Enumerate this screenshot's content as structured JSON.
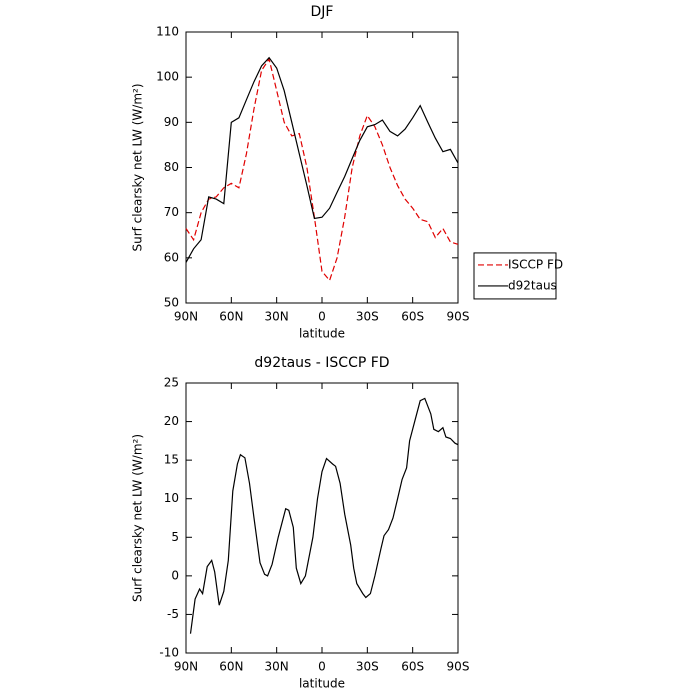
{
  "chart_data": [
    {
      "type": "line",
      "title": "DJF",
      "xlabel": "latitude",
      "ylabel": "Surf clearsky net LW (W/m²)",
      "x": [
        90,
        85,
        80,
        75,
        70,
        65,
        60,
        55,
        50,
        45,
        40,
        35,
        30,
        25,
        20,
        15,
        10,
        5,
        0,
        -5,
        -10,
        -15,
        -20,
        -25,
        -30,
        -35,
        -40,
        -45,
        -50,
        -55,
        -60,
        -65,
        -70,
        -75,
        -80,
        -85,
        -90
      ],
      "series": [
        {
          "name": "ISCCP FD",
          "color": "#e00000",
          "dash": "dashed",
          "values": [
            66.5,
            64,
            70,
            73,
            73.5,
            75.5,
            76.5,
            75.5,
            83,
            93,
            101.5,
            104,
            97,
            90,
            87,
            87.5,
            80,
            69,
            57,
            55,
            60,
            69,
            80,
            87,
            91.5,
            89,
            85,
            80,
            76,
            73,
            71,
            68.5,
            68,
            64.5,
            66.5,
            63.5,
            63
          ]
        },
        {
          "name": "d92taus",
          "color": "#000000",
          "dash": "solid",
          "values": [
            59,
            62,
            64,
            73.5,
            73,
            72,
            90,
            91,
            95,
            99,
            102.5,
            104.3,
            102,
            97,
            90,
            83,
            76,
            68.7,
            69,
            71,
            74.5,
            78,
            82,
            86,
            89,
            89.5,
            90.5,
            88,
            87,
            88.5,
            91,
            93.7,
            90,
            86.5,
            83.5,
            84,
            81
          ]
        }
      ],
      "xlim": [
        90,
        -90
      ],
      "xticks": [
        {
          "value": 90,
          "label": "90N"
        },
        {
          "value": 60,
          "label": "60N"
        },
        {
          "value": 30,
          "label": "30N"
        },
        0,
        {
          "value": -30,
          "label": "30S"
        },
        {
          "value": -60,
          "label": "60S"
        },
        {
          "value": -90,
          "label": "90S"
        }
      ],
      "ylim": [
        50,
        110
      ],
      "yticks": [
        50,
        60,
        70,
        80,
        90,
        100,
        110
      ],
      "legend": "right"
    },
    {
      "type": "line",
      "title": "d92taus - ISCCP FD",
      "xlabel": "latitude",
      "ylabel": "Surf clearsky net LW (W/m²)",
      "x": [
        87,
        84,
        81,
        79,
        76,
        73,
        71,
        68,
        65,
        62,
        59,
        56,
        54,
        51,
        48,
        45,
        41,
        38,
        36,
        33,
        29,
        24,
        22,
        19,
        17,
        14,
        11,
        9,
        6,
        3,
        0,
        -3,
        -7,
        -9,
        -12,
        -15,
        -19,
        -21,
        -23,
        -27,
        -29,
        -32,
        -35,
        -39,
        -41,
        -44,
        -47,
        -50,
        -53,
        -56,
        -58,
        -62,
        -65,
        -68,
        -72,
        -74,
        -77,
        -80,
        -82,
        -85,
        -88,
        -90
      ],
      "series": [
        {
          "name": "d92taus - ISCCP FD",
          "color": "#000000",
          "dash": "solid",
          "values": [
            -7.5,
            -3,
            -1.7,
            -2.3,
            1.2,
            2,
            0.5,
            -3.8,
            -2,
            2,
            11,
            14.5,
            15.7,
            15.3,
            12,
            7.5,
            1.7,
            0.2,
            0,
            1.5,
            5,
            8.7,
            8.5,
            6.3,
            1,
            -1,
            0,
            2,
            5,
            10,
            13.5,
            15.2,
            14.5,
            14.2,
            12,
            8,
            4,
            1,
            -1,
            -2.3,
            -2.8,
            -2.3,
            0,
            3.5,
            5.2,
            6,
            7.5,
            10,
            12.5,
            14,
            17.5,
            20.5,
            22.7,
            23,
            21,
            19,
            18.7,
            19.2,
            18,
            17.8,
            17.2,
            17
          ]
        }
      ],
      "xlim": [
        90,
        -90
      ],
      "xticks": [
        {
          "value": 90,
          "label": "90N"
        },
        {
          "value": 60,
          "label": "60N"
        },
        {
          "value": 30,
          "label": "30N"
        },
        0,
        {
          "value": -30,
          "label": "30S"
        },
        {
          "value": -60,
          "label": "60S"
        },
        {
          "value": -90,
          "label": "90S"
        }
      ],
      "ylim": [
        -10,
        25
      ],
      "yticks": [
        -10,
        -5,
        0,
        5,
        10,
        15,
        20,
        25
      ]
    }
  ]
}
